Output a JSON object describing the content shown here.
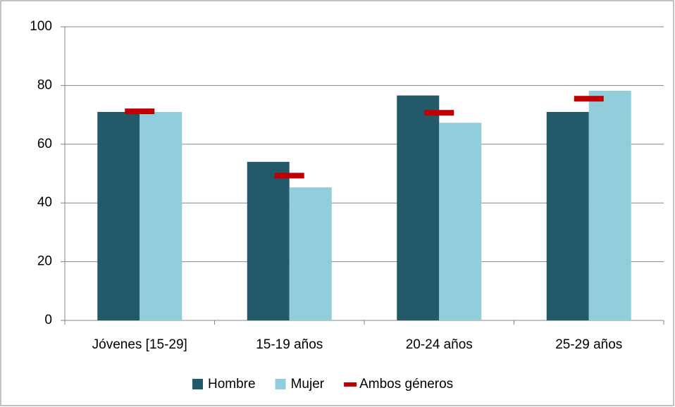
{
  "chart_data": {
    "type": "bar",
    "categories": [
      "Jóvenes [15-29]",
      "15-19 años",
      "20-24 años",
      "25-29 años"
    ],
    "series": [
      {
        "name": "Hombre",
        "color": "#235a69",
        "values": [
          71,
          54,
          76.6,
          71
        ]
      },
      {
        "name": "Mujer",
        "color": "#92cddc",
        "values": [
          71,
          45.3,
          67.3,
          78.2
        ]
      },
      {
        "name": "Ambos géneros",
        "color": "#c00000",
        "marker": "dash",
        "values": [
          71.2,
          49.3,
          70.7,
          75.5
        ]
      }
    ],
    "ylim": [
      0,
      100
    ],
    "yticks": [
      0,
      20,
      40,
      60,
      80,
      100
    ],
    "grid": true,
    "legend": "bottom"
  }
}
